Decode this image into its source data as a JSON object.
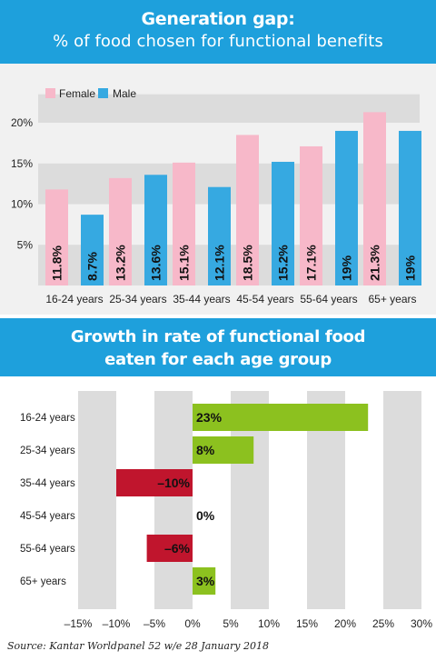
{
  "header1": {
    "title": "Generation gap:",
    "subtitle": "% of  food chosen for functional benefits"
  },
  "header2": {
    "line1": "Growth in rate of functional food",
    "line2": "eaten for each age group"
  },
  "source": "Source: Kantar Worldpanel 52 w/e 28 January 2018",
  "colors": {
    "banner": "#1ea0dc",
    "female": "#f7b8c9",
    "male": "#36a9e1",
    "positive": "#8cc11f",
    "negative": "#c0152d",
    "band": "#dcdcdc"
  },
  "chart_data": [
    {
      "type": "bar",
      "title": "Generation gap: % of  food chosen for functional benefits",
      "categories": [
        "16-24 years",
        "25-34 years",
        "35-44 years",
        "45-54 years",
        "55-64 years",
        "65+ years"
      ],
      "series": [
        {
          "name": "Female",
          "values": [
            11.8,
            13.2,
            15.1,
            18.5,
            17.1,
            21.3
          ],
          "labels": [
            "11.8%",
            "13.2%",
            "15.1%",
            "18.5%",
            "17.1%",
            "21.3%"
          ]
        },
        {
          "name": "Male",
          "values": [
            8.7,
            13.6,
            12.1,
            15.2,
            19,
            19
          ],
          "labels": [
            "8.7%",
            "13.6%",
            "12.1%",
            "15.2%",
            "19%",
            "19%"
          ]
        }
      ],
      "yticks": [
        5,
        10,
        15,
        20
      ],
      "ytick_labels": [
        "5%",
        "10%",
        "15%",
        "20%"
      ],
      "ylim": [
        0,
        23.5
      ],
      "legend": "top-left"
    },
    {
      "type": "bar",
      "orientation": "horizontal",
      "title": "Growth in rate of functional food eaten for each age group",
      "categories": [
        "16-24 years",
        "25-34 years",
        "35-44 years",
        "45-54 years",
        "55-64 years",
        "65+ years"
      ],
      "values": [
        23,
        8,
        -10,
        0,
        -6,
        3
      ],
      "labels": [
        "23%",
        "8%",
        "–10%",
        "0%",
        "–6%",
        "3%"
      ],
      "xticks": [
        -15,
        -10,
        -5,
        0,
        5,
        10,
        15,
        20,
        25,
        30
      ],
      "xtick_labels": [
        "–15%",
        "–10%",
        "–5%",
        "0%",
        "5%",
        "10%",
        "15%",
        "20%",
        "25%",
        "30%"
      ],
      "xlim": [
        -15,
        30
      ]
    }
  ]
}
